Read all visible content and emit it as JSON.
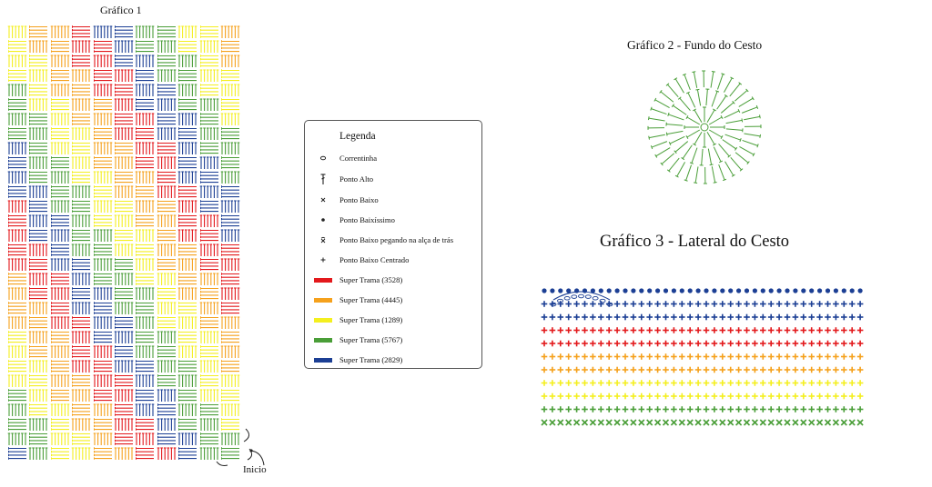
{
  "titles": {
    "grafico1": "Gráfico 1",
    "grafico2": "Gráfico 2 - Fundo do Cesto",
    "grafico3": "Gráfico 3 - Lateral do Cesto"
  },
  "grafico1": {
    "start_label": "Inicio",
    "rows": 30,
    "cells_per_row": 11,
    "color_bands": [
      "red",
      "orange",
      "yellow",
      "green",
      "blue"
    ]
  },
  "legend": {
    "title": "Legenda",
    "stitches": [
      {
        "label": "Correntinha",
        "icon": "chain-oval-icon"
      },
      {
        "label": "Ponto Alto",
        "icon": "double-crochet-icon"
      },
      {
        "label": "Ponto Baixo",
        "icon": "single-crochet-x-icon"
      },
      {
        "label": "Ponto Baixíssimo",
        "icon": "slip-stitch-dot-icon"
      },
      {
        "label": "Ponto Baixo pegando na alça de trás",
        "icon": "back-loop-x-icon"
      },
      {
        "label": "Ponto Baixo Centrado",
        "icon": "center-sc-plus-icon"
      }
    ],
    "colors": [
      {
        "label": "Super Trama (3528)",
        "color": "#e3191c"
      },
      {
        "label": "Super Trama (4445)",
        "color": "#f5a11c"
      },
      {
        "label": "Super Trama (1289)",
        "color": "#f4ef1f"
      },
      {
        "label": "Super Trama (5767)",
        "color": "#4a9e38"
      },
      {
        "label": "Super Trama (2829)",
        "color": "#1c3f94"
      }
    ]
  },
  "grafico2": {
    "color": "#4a9e38",
    "rounds": 3
  },
  "grafico3": {
    "row_colors": [
      "#1c3f94",
      "#1c3f94",
      "#1c3f94",
      "#e3191c",
      "#e3191c",
      "#f5a11c",
      "#f5a11c",
      "#f4ef1f",
      "#f4ef1f",
      "#4a9e38",
      "#4a9e38"
    ],
    "row_symbols": [
      "dot",
      "plus",
      "plus",
      "plus",
      "plus",
      "plus",
      "plus",
      "plus",
      "plus",
      "plus",
      "x"
    ]
  }
}
